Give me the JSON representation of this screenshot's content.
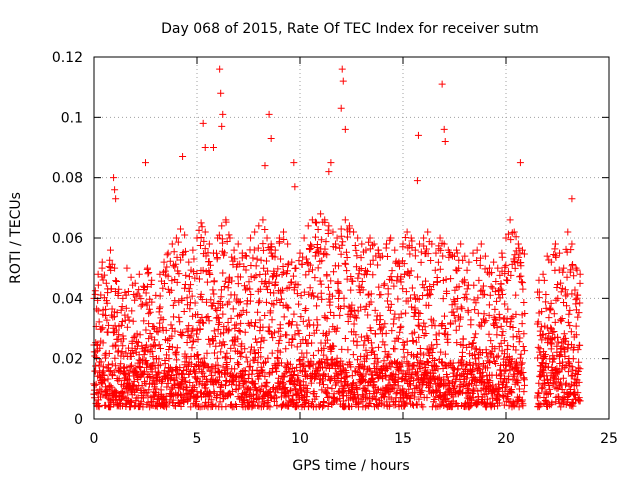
{
  "chart_data": {
    "type": "scatter",
    "title": "Day 068 of 2015, Rate Of TEC Index for receiver sutm",
    "xlabel": "GPS time / hours",
    "ylabel": "ROTI / TECUs",
    "xlim": [
      0,
      25
    ],
    "ylim": [
      0,
      0.12
    ],
    "xticks": [
      0,
      5,
      10,
      15,
      20,
      25
    ],
    "xtick_labels": [
      "0",
      "5",
      "10",
      "15",
      "20",
      "25"
    ],
    "yticks": [
      0,
      0.02,
      0.04,
      0.06,
      0.08,
      0.1,
      0.12
    ],
    "ytick_labels": [
      "0",
      "0.02",
      "0.04",
      "0.06",
      "0.08",
      "0.1",
      "0.12"
    ],
    "grid": true,
    "marker": "+",
    "color": "#ff0000",
    "data_gap_hours": [
      20.9,
      21.5
    ],
    "series": [
      {
        "name": "ROTI",
        "x": [
          0.0,
          0.2,
          0.4,
          0.6,
          0.8,
          1.0,
          1.2,
          1.4,
          1.6,
          1.8,
          2.0,
          2.2,
          2.4,
          2.6,
          2.8,
          3.0,
          3.2,
          3.4,
          3.6,
          3.8,
          4.0,
          4.2,
          4.4,
          4.6,
          4.8,
          5.0,
          5.2,
          5.4,
          5.6,
          5.8,
          6.0,
          6.2,
          6.4,
          6.6,
          6.8,
          7.0,
          7.2,
          7.4,
          7.6,
          7.8,
          8.0,
          8.2,
          8.4,
          8.6,
          8.8,
          9.0,
          9.2,
          9.4,
          9.6,
          9.8,
          10.0,
          10.2,
          10.4,
          10.6,
          10.8,
          11.0,
          11.2,
          11.4,
          11.6,
          11.8,
          12.0,
          12.2,
          12.4,
          12.6,
          12.8,
          13.0,
          13.2,
          13.4,
          13.6,
          13.8,
          14.0,
          14.2,
          14.4,
          14.6,
          14.8,
          15.0,
          15.2,
          15.4,
          15.6,
          15.8,
          16.0,
          16.2,
          16.4,
          16.6,
          16.8,
          17.0,
          17.2,
          17.4,
          17.6,
          17.8,
          18.0,
          18.2,
          18.4,
          18.6,
          18.8,
          19.0,
          19.2,
          19.4,
          19.6,
          19.8,
          20.0,
          20.2,
          20.4,
          20.6,
          20.8,
          21.6,
          21.8,
          22.0,
          22.2,
          22.4,
          22.6,
          22.8,
          23.0,
          23.2,
          23.4,
          23.6,
          0.95,
          1.0,
          1.05,
          2.5,
          4.3,
          5.3,
          5.4,
          5.8,
          6.1,
          6.15,
          6.2,
          6.25,
          8.3,
          8.5,
          8.6,
          9.7,
          9.75,
          11.4,
          11.5,
          12.0,
          12.05,
          12.1,
          12.2,
          15.7,
          15.75,
          16.9,
          17.0,
          17.05,
          20.7,
          23.2
        ],
        "y": [
          0.04,
          0.048,
          0.052,
          0.045,
          0.056,
          0.05,
          0.043,
          0.04,
          0.05,
          0.047,
          0.045,
          0.048,
          0.044,
          0.05,
          0.046,
          0.041,
          0.048,
          0.052,
          0.055,
          0.058,
          0.06,
          0.063,
          0.061,
          0.052,
          0.056,
          0.06,
          0.065,
          0.062,
          0.058,
          0.055,
          0.06,
          0.064,
          0.066,
          0.06,
          0.056,
          0.058,
          0.055,
          0.054,
          0.06,
          0.062,
          0.064,
          0.066,
          0.06,
          0.058,
          0.056,
          0.06,
          0.062,
          0.058,
          0.052,
          0.05,
          0.055,
          0.06,
          0.064,
          0.066,
          0.065,
          0.068,
          0.066,
          0.064,
          0.062,
          0.06,
          0.063,
          0.066,
          0.064,
          0.062,
          0.06,
          0.058,
          0.056,
          0.06,
          0.058,
          0.056,
          0.054,
          0.058,
          0.06,
          0.056,
          0.052,
          0.058,
          0.062,
          0.06,
          0.056,
          0.058,
          0.06,
          0.062,
          0.058,
          0.055,
          0.06,
          0.058,
          0.056,
          0.054,
          0.056,
          0.058,
          0.054,
          0.052,
          0.055,
          0.056,
          0.058,
          0.054,
          0.05,
          0.052,
          0.05,
          0.055,
          0.06,
          0.066,
          0.062,
          0.058,
          0.056,
          0.046,
          0.048,
          0.054,
          0.052,
          0.058,
          0.055,
          0.05,
          0.062,
          0.058,
          0.05,
          0.048,
          0.08,
          0.076,
          0.073,
          0.085,
          0.087,
          0.098,
          0.09,
          0.09,
          0.116,
          0.108,
          0.097,
          0.101,
          0.084,
          0.101,
          0.093,
          0.085,
          0.077,
          0.082,
          0.085,
          0.103,
          0.116,
          0.112,
          0.096,
          0.079,
          0.094,
          0.111,
          0.096,
          0.092,
          0.085,
          0.073
        ]
      }
    ]
  }
}
